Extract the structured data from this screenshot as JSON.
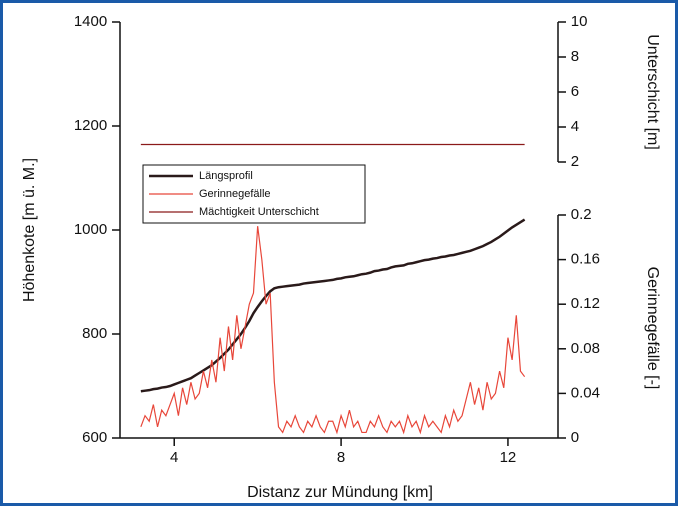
{
  "chart_data": {
    "type": "line",
    "xlabel": "Distanz zur Mündung [km]",
    "ylabel": "Höhenkote [m ü. M.]",
    "y2label": "Unterschicht [m]",
    "y3label": "Gerinnegefälle [-]",
    "xlim": [
      2.7,
      13.2
    ],
    "xticks": [
      4,
      8,
      12
    ],
    "ylim": [
      600,
      1400
    ],
    "yticks": [
      600,
      800,
      1000,
      1200,
      1400
    ],
    "y2lim": [
      2,
      10
    ],
    "y2ticks": [
      2,
      4,
      6,
      8,
      10
    ],
    "y3lim": [
      0,
      0.2
    ],
    "y3ticks": [
      0,
      0.04,
      0.08,
      0.12,
      0.16,
      0.2
    ],
    "legend": "upper left",
    "x": [
      3.2,
      3.3,
      3.4,
      3.5,
      3.6,
      3.7,
      3.8,
      3.9,
      4,
      4.1,
      4.2,
      4.3,
      4.4,
      4.5,
      4.6,
      4.7,
      4.8,
      4.9,
      5,
      5.1,
      5.2,
      5.3,
      5.4,
      5.5,
      5.6,
      5.7,
      5.8,
      5.9,
      6,
      6.1,
      6.2,
      6.3,
      6.4,
      6.5,
      6.6,
      6.7,
      6.8,
      6.9,
      7,
      7.1,
      7.2,
      7.3,
      7.4,
      7.5,
      7.6,
      7.7,
      7.8,
      7.9,
      8,
      8.1,
      8.2,
      8.3,
      8.4,
      8.5,
      8.6,
      8.7,
      8.8,
      8.9,
      9,
      9.1,
      9.2,
      9.3,
      9.4,
      9.5,
      9.6,
      9.7,
      9.8,
      9.9,
      10,
      10.1,
      10.2,
      10.3,
      10.4,
      10.5,
      10.6,
      10.7,
      10.8,
      10.9,
      11,
      11.1,
      11.2,
      11.3,
      11.4,
      11.5,
      11.6,
      11.7,
      11.8,
      11.9,
      12,
      12.1,
      12.2,
      12.3,
      12.4
    ],
    "series": [
      {
        "name": "Längsprofil",
        "color": "#2a1a1a",
        "axis": "y",
        "values": [
          690,
          691,
          692,
          694,
          695,
          697,
          698,
          700,
          703,
          706,
          709,
          712,
          715,
          720,
          725,
          730,
          735,
          740,
          747,
          754,
          762,
          770,
          780,
          790,
          800,
          812,
          825,
          840,
          852,
          863,
          873,
          882,
          888,
          890,
          891,
          892,
          893,
          894,
          895,
          897,
          898,
          899,
          900,
          901,
          902,
          903,
          904,
          906,
          907,
          909,
          910,
          911,
          913,
          915,
          916,
          918,
          921,
          922,
          924,
          925,
          928,
          930,
          931,
          932,
          935,
          936,
          938,
          940,
          942,
          943,
          945,
          946,
          948,
          949,
          951,
          952,
          954,
          956,
          958,
          960,
          963,
          966,
          969,
          973,
          977,
          982,
          987,
          993,
          999,
          1005,
          1010,
          1015,
          1020
        ]
      },
      {
        "name": "Gerinnegefälle",
        "color": "#e8473a",
        "axis": "y3",
        "values": [
          0.01,
          0.02,
          0.015,
          0.03,
          0.01,
          0.025,
          0.02,
          0.03,
          0.04,
          0.02,
          0.045,
          0.03,
          0.05,
          0.035,
          0.04,
          0.06,
          0.045,
          0.07,
          0.05,
          0.09,
          0.06,
          0.1,
          0.07,
          0.11,
          0.08,
          0.1,
          0.12,
          0.13,
          0.19,
          0.16,
          0.12,
          0.13,
          0.05,
          0.01,
          0.005,
          0.015,
          0.01,
          0.02,
          0.01,
          0.005,
          0.015,
          0.01,
          0.02,
          0.01,
          0.005,
          0.015,
          0.015,
          0.005,
          0.02,
          0.01,
          0.025,
          0.01,
          0.015,
          0.005,
          0.005,
          0.015,
          0.01,
          0.02,
          0.01,
          0.005,
          0.015,
          0.01,
          0.015,
          0.005,
          0.02,
          0.01,
          0.015,
          0.005,
          0.02,
          0.01,
          0.015,
          0.01,
          0.005,
          0.02,
          0.01,
          0.025,
          0.015,
          0.02,
          0.035,
          0.05,
          0.03,
          0.045,
          0.025,
          0.05,
          0.035,
          0.04,
          0.06,
          0.045,
          0.09,
          0.07,
          0.11,
          0.06,
          0.055
        ]
      },
      {
        "name": "Mächtigkeit Unterschicht",
        "color": "#8b1a1a",
        "axis": "y2",
        "x": [
          3.2,
          12.4
        ],
        "values": [
          3,
          3
        ]
      }
    ]
  }
}
